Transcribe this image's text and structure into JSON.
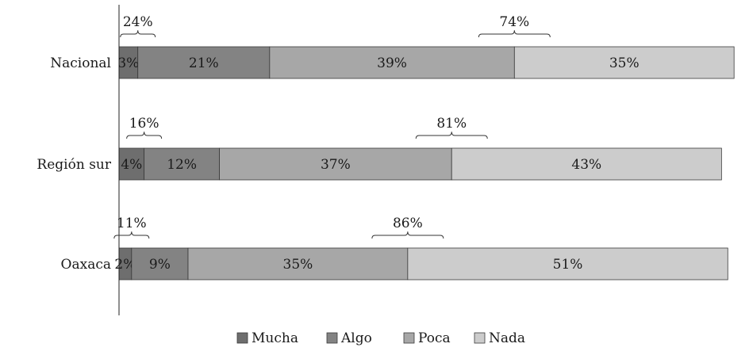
{
  "chart_data": {
    "type": "bar",
    "orientation": "horizontal",
    "stacked": true,
    "categories": [
      "Nacional",
      "Región sur",
      "Oaxaca"
    ],
    "series": [
      {
        "name": "Mucha",
        "color": "#6e6e6e",
        "values": [
          3,
          4,
          2
        ],
        "labels": [
          "3%",
          "4%",
          "2%"
        ]
      },
      {
        "name": "Algo",
        "color": "#838383",
        "values": [
          21,
          12,
          9
        ],
        "labels": [
          "21%",
          "12%",
          "9%"
        ]
      },
      {
        "name": "Poca",
        "color": "#a7a7a7",
        "values": [
          39,
          37,
          35
        ],
        "labels": [
          "39%",
          "37%",
          "35%"
        ]
      },
      {
        "name": "Nada",
        "color": "#cccccc",
        "values": [
          35,
          43,
          51
        ],
        "labels": [
          "35%",
          "43%",
          "51%"
        ]
      }
    ],
    "brackets": [
      {
        "category": "Nacional",
        "group": "Mucha+Algo",
        "label": "24%"
      },
      {
        "category": "Nacional",
        "group": "Poca+Nada",
        "label": "74%"
      },
      {
        "category": "Región sur",
        "group": "Mucha+Algo",
        "label": "16%"
      },
      {
        "category": "Región sur",
        "group": "Poca+Nada",
        "label": "81%"
      },
      {
        "category": "Oaxaca",
        "group": "Mucha+Algo",
        "label": "11%"
      },
      {
        "category": "Oaxaca",
        "group": "Poca+Nada",
        "label": "86%"
      }
    ],
    "xlim": [
      0,
      100
    ],
    "grid": false,
    "legend": "bottom",
    "title": "",
    "xlabel": "",
    "ylabel": ""
  }
}
